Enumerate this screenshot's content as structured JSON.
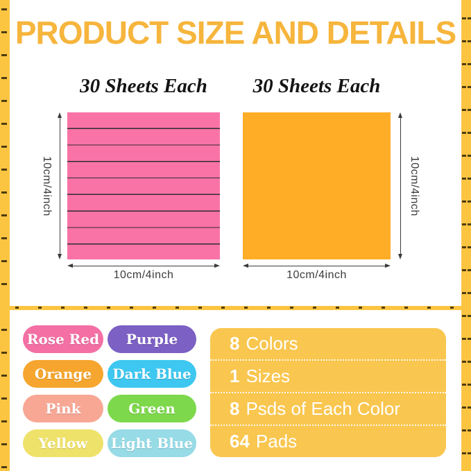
{
  "title": "PRODUCT SIZE AND DETAILS",
  "theme": {
    "frame_yellow": "#FBC542",
    "title_yellow": "#F6B53C",
    "panel_gold": "#F9C64F",
    "text_dark": "#3B3B3B"
  },
  "size_section": {
    "pads": [
      {
        "sheets_label": "30 Sheets Each",
        "color": "#F973A7",
        "style": "lined",
        "height_label": "10cm/4inch",
        "width_label": "10cm/4inch"
      },
      {
        "sheets_label": "30 Sheets Each",
        "color": "#FFAD27",
        "style": "plain",
        "height_label": "10cm/4inch",
        "width_label": "10cm/4inch"
      }
    ]
  },
  "details_section": {
    "color_pills": [
      {
        "label": "Rose Red",
        "color": "#F36FA4"
      },
      {
        "label": "Purple",
        "color": "#7C60C4"
      },
      {
        "label": "Orange",
        "color": "#F6A62E"
      },
      {
        "label": "Dark Blue",
        "color": "#3EC7F0"
      },
      {
        "label": "Pink",
        "color": "#F8A795"
      },
      {
        "label": "Green",
        "color": "#7DD84B"
      },
      {
        "label": "Yellow",
        "color": "#EFE26B"
      },
      {
        "label": "Light Blue",
        "color": "#96DBE6"
      }
    ],
    "specs": [
      {
        "number": "8",
        "text": "Colors"
      },
      {
        "number": "1",
        "text": "Sizes"
      },
      {
        "number": "8",
        "text": "Psds of Each Color"
      },
      {
        "number": "64",
        "text": "Pads"
      }
    ]
  }
}
